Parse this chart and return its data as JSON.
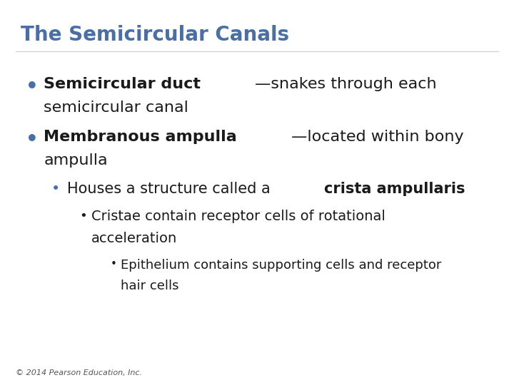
{
  "title": "The Semicircular Canals",
  "title_color": "#4a6fa5",
  "background_color": "#ffffff",
  "footer": "© 2014 Pearson Education, Inc.",
  "bullet_color": "#4a6fa5",
  "text_color": "#1a1a1a",
  "bullet1_bold": "Semicircular duct",
  "bullet1_rest": "—snakes through each semicircular canal",
  "bullet1_wrap": "semicircular canal",
  "bullet2_bold": "Membranous ampulla",
  "bullet2_rest": "—located within bony ampulla",
  "bullet2_wrap": "ampulla",
  "sub_bullet1_normal": "Houses a structure called a ",
  "sub_bullet1_bold": "crista ampullaris",
  "sub_sub_bullet1_line1": "Cristae contain receptor cells of rotational",
  "sub_sub_bullet1_line2": "acceleration",
  "sub_sub_sub_bullet1_line1": "Epithelium contains supporting cells and receptor",
  "sub_sub_sub_bullet1_line2": "hair cells"
}
